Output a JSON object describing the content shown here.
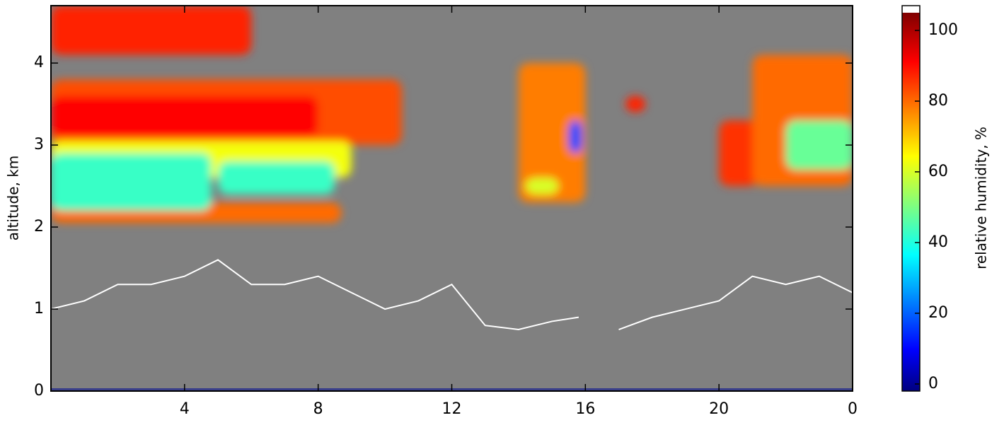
{
  "chart_data": {
    "type": "heatmap",
    "ylabel": "altitude, km",
    "colorbar_label": "relative humidity, %",
    "xlim": [
      0,
      24
    ],
    "xticks": [
      4,
      8,
      12,
      16,
      20,
      {
        "value": 24,
        "label": "0"
      }
    ],
    "ylim": [
      0,
      4.7
    ],
    "yticks": [
      0,
      1,
      2,
      3,
      4
    ],
    "clim": [
      -2,
      107
    ],
    "cticks": [
      0,
      20,
      40,
      60,
      80,
      100
    ],
    "cells": [
      {
        "x": [
          0,
          6
        ],
        "y": [
          4.1,
          4.7
        ],
        "value": 90
      },
      {
        "x": [
          0,
          10.5
        ],
        "y": [
          3.0,
          3.8
        ],
        "value": 85
      },
      {
        "x": [
          0,
          8
        ],
        "y": [
          3.1,
          3.6
        ],
        "value": 93
      },
      {
        "x": [
          0,
          9
        ],
        "y": [
          2.6,
          3.05
        ],
        "value": 65
      },
      {
        "x": [
          0,
          8.7
        ],
        "y": [
          2.05,
          2.3
        ],
        "value": 82
      },
      {
        "x": [
          0,
          4.8
        ],
        "y": [
          2.2,
          2.9
        ],
        "value": 45
      },
      {
        "x": [
          5,
          8.5
        ],
        "y": [
          2.4,
          2.8
        ],
        "value": 45
      },
      {
        "x": [
          14,
          16
        ],
        "y": [
          2.3,
          4.0
        ],
        "value": 80
      },
      {
        "x": [
          14.2,
          15.2
        ],
        "y": [
          2.4,
          2.6
        ],
        "value": 62
      },
      {
        "x": [
          15.5,
          15.9
        ],
        "y": [
          2.9,
          3.3
        ],
        "value": 20
      },
      {
        "x": [
          20,
          21.2
        ],
        "y": [
          2.5,
          3.3
        ],
        "value": 88
      },
      {
        "x": [
          17.2,
          17.8
        ],
        "y": [
          3.4,
          3.6
        ],
        "value": 90
      },
      {
        "x": [
          21,
          24
        ],
        "y": [
          2.5,
          4.1
        ],
        "value": 82
      },
      {
        "x": [
          22,
          24
        ],
        "y": [
          2.7,
          3.3
        ],
        "value": 50
      }
    ],
    "contour": {
      "x": [
        0,
        1,
        2,
        3,
        4,
        5,
        6,
        7,
        8,
        9,
        10,
        11,
        12,
        13,
        14,
        15,
        15.8,
        16.5,
        17,
        18,
        19,
        20,
        21,
        22,
        23,
        24
      ],
      "y": [
        1.0,
        1.1,
        1.3,
        1.3,
        1.4,
        1.6,
        1.3,
        1.3,
        1.4,
        1.2,
        1.0,
        1.1,
        1.3,
        0.8,
        0.75,
        0.85,
        0.9,
        null,
        0.75,
        0.9,
        1.0,
        1.1,
        1.4,
        1.3,
        1.4,
        1.2
      ]
    }
  }
}
